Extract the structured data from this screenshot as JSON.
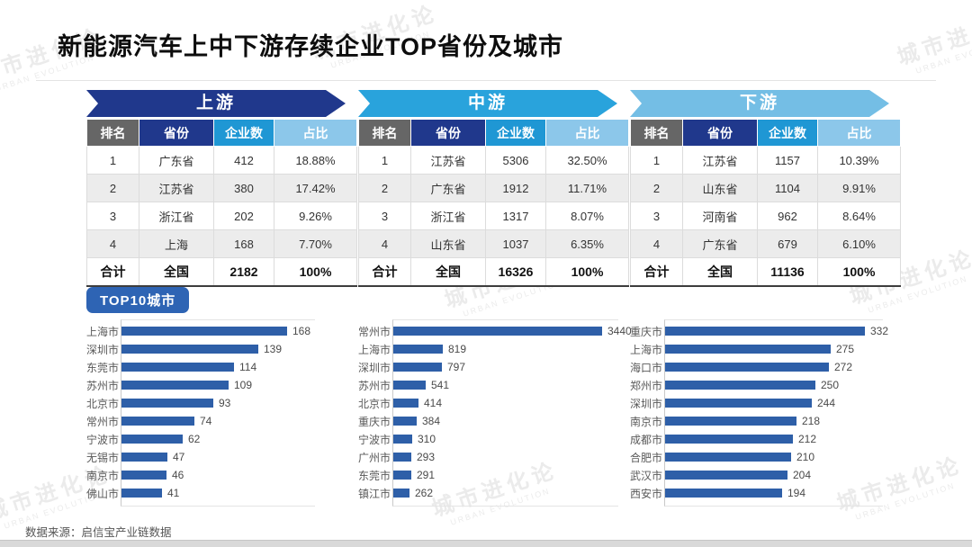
{
  "title": "新能源汽车上中下游存续企业TOP省份及城市",
  "top10_label": "TOP10城市",
  "source": "数据来源：启信宝产业链数据",
  "watermark": {
    "cn": "城市进化论",
    "en": "URBAN EVOLUTION"
  },
  "colors": {
    "banners": [
      "#20388C",
      "#29A3DC",
      "#74BEE5"
    ],
    "header_bg": [
      "#666666",
      "#20388C",
      "#1F97D4",
      "#8CC7EA"
    ],
    "bar": "#2E5FA8",
    "badge": "#2E64B4"
  },
  "tables": [
    {
      "banner": "上游",
      "headers": [
        "排名",
        "省份",
        "企业数",
        "占比"
      ],
      "rows": [
        [
          "1",
          "广东省",
          "412",
          "18.88%"
        ],
        [
          "2",
          "江苏省",
          "380",
          "17.42%"
        ],
        [
          "3",
          "浙江省",
          "202",
          "9.26%"
        ],
        [
          "4",
          "上海",
          "168",
          "7.70%"
        ]
      ],
      "total": [
        "合计",
        "全国",
        "2182",
        "100%"
      ]
    },
    {
      "banner": "中游",
      "headers": [
        "排名",
        "省份",
        "企业数",
        "占比"
      ],
      "rows": [
        [
          "1",
          "江苏省",
          "5306",
          "32.50%"
        ],
        [
          "2",
          "广东省",
          "1912",
          "11.71%"
        ],
        [
          "3",
          "浙江省",
          "1317",
          "8.07%"
        ],
        [
          "4",
          "山东省",
          "1037",
          "6.35%"
        ]
      ],
      "total": [
        "合计",
        "全国",
        "16326",
        "100%"
      ]
    },
    {
      "banner": "下游",
      "headers": [
        "排名",
        "省份",
        "企业数",
        "占比"
      ],
      "rows": [
        [
          "1",
          "江苏省",
          "1157",
          "10.39%"
        ],
        [
          "2",
          "山东省",
          "1104",
          "9.91%"
        ],
        [
          "3",
          "河南省",
          "962",
          "8.64%"
        ],
        [
          "4",
          "广东省",
          "679",
          "6.10%"
        ]
      ],
      "total": [
        "合计",
        "全国",
        "11136",
        "100%"
      ]
    }
  ],
  "chart_data": [
    {
      "type": "bar",
      "segment": "上游",
      "title": "TOP10城市",
      "categories": [
        "上海市",
        "深圳市",
        "东莞市",
        "苏州市",
        "北京市",
        "常州市",
        "宁波市",
        "无锡市",
        "南京市",
        "佛山市"
      ],
      "values": [
        168,
        139,
        114,
        109,
        93,
        74,
        62,
        47,
        46,
        41
      ],
      "orientation": "horizontal",
      "value_labels": true,
      "xlim": [
        0,
        168
      ]
    },
    {
      "type": "bar",
      "segment": "中游",
      "title": "TOP10城市",
      "categories": [
        "常州市",
        "上海市",
        "深圳市",
        "苏州市",
        "北京市",
        "重庆市",
        "宁波市",
        "广州市",
        "东莞市",
        "镇江市"
      ],
      "values": [
        3440,
        819,
        797,
        541,
        414,
        384,
        310,
        293,
        291,
        262
      ],
      "orientation": "horizontal",
      "value_labels": true,
      "xlim": [
        0,
        3440
      ]
    },
    {
      "type": "bar",
      "segment": "下游",
      "title": "TOP10城市",
      "categories": [
        "重庆市",
        "上海市",
        "海口市",
        "郑州市",
        "深圳市",
        "南京市",
        "成都市",
        "合肥市",
        "武汉市",
        "西安市"
      ],
      "values": [
        332,
        275,
        272,
        250,
        244,
        218,
        212,
        210,
        204,
        194
      ],
      "orientation": "horizontal",
      "value_labels": true,
      "xlim": [
        0,
        332
      ]
    }
  ]
}
